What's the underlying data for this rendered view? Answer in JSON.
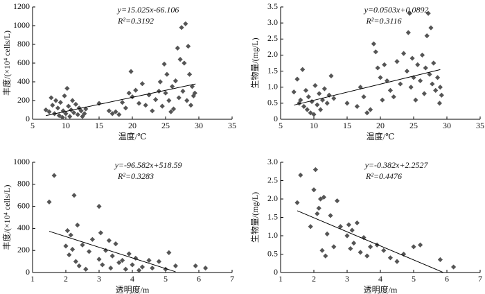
{
  "chart_data": [
    {
      "type": "scatter",
      "equation": "y=15.025x-66.106",
      "r2": "R²=0.3192",
      "x_label": "温度/℃",
      "y_label": "丰度/(×10⁴ cells/L)",
      "color": "#555555",
      "xlim": [
        5,
        35
      ],
      "xticks": [
        5,
        10,
        15,
        20,
        25,
        30,
        35
      ],
      "ylim": [
        0,
        1200
      ],
      "yticks": [
        0,
        200,
        400,
        600,
        800,
        1000,
        1200
      ],
      "trendline": {
        "slope": 15.025,
        "intercept": -66.106,
        "x": [
          7,
          29.5
        ]
      },
      "x": [
        7,
        7.5,
        7.8,
        8,
        8.3,
        8.5,
        8.8,
        9,
        9.2,
        9.5,
        9.6,
        9.8,
        10,
        10.2,
        10.4,
        10.6,
        10.8,
        11,
        11.2,
        11.5,
        11.8,
        12,
        12.3,
        12.5,
        12.8,
        13,
        15,
        16.5,
        17,
        17.5,
        18,
        18.5,
        19,
        19.5,
        19.8,
        20,
        20.5,
        21,
        21.5,
        22,
        22.5,
        23,
        23.5,
        24,
        24.2,
        24.5,
        24.8,
        25,
        25.2,
        25.5,
        25.8,
        26,
        26.2,
        26.5,
        26.8,
        27,
        27.2,
        27.4,
        27.6,
        27.8,
        28,
        28.2,
        28.4,
        28.6,
        28.8,
        29,
        29.2,
        29.4
      ],
      "values": [
        100,
        80,
        230,
        150,
        60,
        200,
        120,
        40,
        180,
        20,
        90,
        250,
        60,
        330,
        140,
        30,
        100,
        200,
        70,
        160,
        50,
        120,
        90,
        30,
        60,
        110,
        170,
        90,
        60,
        80,
        50,
        180,
        120,
        280,
        510,
        240,
        310,
        170,
        380,
        150,
        260,
        90,
        210,
        300,
        400,
        140,
        590,
        280,
        480,
        200,
        80,
        350,
        110,
        410,
        760,
        230,
        640,
        980,
        300,
        600,
        1020,
        200,
        780,
        480,
        150,
        350,
        250,
        280
      ]
    },
    {
      "type": "scatter",
      "equation": "y=0.0503x+0.0892",
      "r2": "R²=0.3116",
      "x_label": "温度/℃",
      "y_label": "生物量/(mg/L)",
      "color": "#555555",
      "xlim": [
        5,
        35
      ],
      "xticks": [
        5,
        10,
        15,
        20,
        25,
        30,
        35
      ],
      "ylim": [
        0,
        3.5
      ],
      "yticks": [
        0,
        0.5,
        {
          "value": 1,
          "label": "1.0"
        },
        1.5,
        {
          "value": 2,
          "label": "2.0"
        },
        2.5,
        {
          "value": 3,
          "label": "3.0"
        },
        3.5
      ],
      "trendline": {
        "slope": 0.0503,
        "intercept": 0.0892,
        "x": [
          7,
          29
        ]
      },
      "x": [
        7,
        7.5,
        7.8,
        8,
        8.3,
        8.5,
        8.8,
        9,
        9.2,
        9.5,
        9.7,
        10,
        10.2,
        10.5,
        10.8,
        11,
        11.3,
        11.6,
        12,
        12.3,
        12.6,
        13,
        15,
        16.5,
        17,
        17.5,
        18,
        18.5,
        19,
        19.3,
        19.6,
        20,
        20.3,
        20.6,
        21,
        21.5,
        22,
        22.5,
        23,
        23.5,
        24,
        24.2,
        24.4,
        24.6,
        24.8,
        25,
        25.3,
        25.6,
        26,
        26.3,
        26.6,
        26.8,
        27,
        27.2,
        27.4,
        27.6,
        27.8,
        28,
        28.3,
        28.6,
        28.9,
        29,
        29.2
      ],
      "values": [
        0.85,
        1.25,
        0.5,
        0.6,
        1.55,
        0.4,
        0.9,
        0.3,
        0.7,
        0.2,
        0.55,
        0.15,
        1.05,
        0.45,
        0.8,
        0.3,
        0.6,
        0.95,
        0.5,
        0.75,
        1.35,
        0.65,
        0.5,
        0.4,
        1.0,
        0.7,
        0.2,
        0.3,
        2.35,
        2.1,
        1.6,
        1.3,
        0.6,
        1.7,
        1.2,
        0.9,
        0.7,
        1.8,
        1.1,
        2.05,
        1.5,
        2.7,
        3.3,
        1.0,
        1.9,
        1.3,
        0.6,
        1.7,
        1.2,
        2.0,
        0.8,
        1.6,
        2.6,
        3.3,
        1.4,
        2.85,
        1.1,
        1.75,
        0.9,
        1.3,
        0.5,
        1.0,
        0.75
      ]
    },
    {
      "type": "scatter",
      "equation": "y=-96.582x+518.59",
      "r2": "R²=0.3283",
      "x_label": "透明度/m",
      "y_label": "丰度/(×10⁴ cells/L)",
      "color": "#555555",
      "xlim": [
        1,
        7
      ],
      "xticks": [
        1,
        2,
        3,
        4,
        5,
        6,
        7
      ],
      "ylim": [
        0,
        1000
      ],
      "yticks": [
        0,
        200,
        400,
        600,
        800,
        1000
      ],
      "trendline": {
        "slope": -96.582,
        "intercept": 518.59,
        "x": [
          1.5,
          5.3
        ]
      },
      "x": [
        1.5,
        1.65,
        2,
        2.05,
        2.1,
        2.15,
        2.2,
        2.25,
        2.3,
        2.35,
        2.4,
        2.5,
        2.6,
        2.7,
        2.8,
        3,
        3,
        3.05,
        3.1,
        3.2,
        3.3,
        3.35,
        3.4,
        3.5,
        3.6,
        3.7,
        3.8,
        3.9,
        4,
        4.1,
        4.2,
        4.3,
        4.5,
        4.6,
        4.8,
        5,
        5.1,
        5.3,
        5.9,
        6.2
      ],
      "values": [
        640,
        880,
        240,
        380,
        160,
        340,
        210,
        700,
        100,
        430,
        60,
        250,
        30,
        190,
        300,
        600,
        120,
        360,
        70,
        200,
        290,
        40,
        150,
        260,
        90,
        110,
        30,
        170,
        70,
        130,
        20,
        50,
        110,
        40,
        100,
        30,
        180,
        60,
        60,
        40
      ]
    },
    {
      "type": "scatter",
      "equation": "y=-0.382x+2.2527",
      "r2": "R²=0.4476",
      "x_label": "透明度/m",
      "y_label": "生物量/(mg/L)",
      "color": "#555555",
      "xlim": [
        1,
        7
      ],
      "xticks": [
        1,
        2,
        3,
        4,
        5,
        6,
        7
      ],
      "ylim": [
        0,
        3
      ],
      "yticks": [
        0,
        0.5,
        {
          "value": 1,
          "label": "1.0"
        },
        1.5,
        {
          "value": 2,
          "label": "2.0"
        },
        2.5,
        {
          "value": 3,
          "label": "3.0"
        }
      ],
      "trendline": {
        "slope": -0.382,
        "intercept": 2.2527,
        "x": [
          1.5,
          5.9
        ]
      },
      "x": [
        1.5,
        1.6,
        1.9,
        2,
        2.05,
        2.1,
        2.15,
        2.2,
        2.25,
        2.3,
        2.35,
        2.4,
        2.5,
        2.6,
        2.7,
        2.8,
        3,
        3.05,
        3.1,
        3.15,
        3.2,
        3.3,
        3.4,
        3.5,
        3.6,
        3.7,
        3.9,
        4.1,
        4.3,
        4.5,
        4.7,
        5,
        5.2,
        5.8,
        6.2
      ],
      "values": [
        1.9,
        2.65,
        1.25,
        2.25,
        2.8,
        1.6,
        1.75,
        2.0,
        0.6,
        2.05,
        0.45,
        1.05,
        1.55,
        0.7,
        1.95,
        1.25,
        1.0,
        1.3,
        0.65,
        1.15,
        0.8,
        1.35,
        0.55,
        0.95,
        0.45,
        0.7,
        0.75,
        0.6,
        0.4,
        0.3,
        0.5,
        0.7,
        0.75,
        0.35,
        0.15
      ]
    }
  ]
}
